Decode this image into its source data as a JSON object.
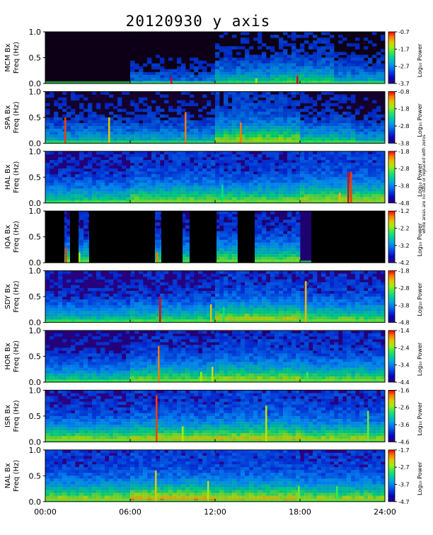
{
  "title": "20120930 y axis",
  "side_note": "white areas are no data or replaced with zeros",
  "chart_data": [
    {
      "type": "heatmap",
      "station": "MCM",
      "ylabel": [
        "MCM Bx",
        "Freq (Hz)"
      ],
      "colorbar_label": "Log₁₀ Power",
      "colorbar_ticks": [
        "-0.7",
        "-1.7",
        "-2.7",
        "-3.7"
      ],
      "clim": [
        -3.7,
        -0.7
      ],
      "background": "#0d0016",
      "events": [
        [
          8.9,
          0.12,
          1.0
        ],
        [
          14.9,
          0.1,
          0.7
        ],
        [
          17.8,
          0.15,
          1.0
        ]
      ],
      "activity": [
        [
          6.0,
          12.0,
          0.15,
          0.3
        ],
        [
          12.0,
          16.0,
          0.3,
          0.45
        ],
        [
          16.0,
          20.5,
          0.35,
          0.5
        ],
        [
          20.5,
          24.0,
          0.25,
          0.4
        ]
      ]
    },
    {
      "type": "heatmap",
      "station": "SPA",
      "ylabel": [
        "SPA Bx",
        "Freq (Hz)"
      ],
      "colorbar_label": "Log₁₀ Power",
      "colorbar_ticks": [
        "-0.8",
        "-1.8",
        "-2.8",
        "-3.8"
      ],
      "clim": [
        -3.8,
        -0.8
      ],
      "background": "#14002a",
      "events": [
        [
          1.4,
          0.5,
          0.95
        ],
        [
          4.5,
          0.5,
          0.8
        ],
        [
          9.9,
          0.6,
          0.9
        ],
        [
          13.8,
          0.4,
          0.9
        ]
      ],
      "activity": [
        [
          0.0,
          12.0,
          0.25,
          0.45
        ],
        [
          12.0,
          18.0,
          0.5,
          0.6
        ],
        [
          18.0,
          22.0,
          0.35,
          0.45
        ],
        [
          22.0,
          24.0,
          0.25,
          0.4
        ]
      ]
    },
    {
      "type": "heatmap",
      "station": "HAL",
      "ylabel": [
        "HAL Bx",
        "Freq (Hz)"
      ],
      "colorbar_label": "Log₁₀ Power",
      "colorbar_ticks": [
        "-1.8",
        "-2.8",
        "-3.8",
        "-4.8"
      ],
      "clim": [
        -4.8,
        -1.8
      ],
      "background": "#21007a",
      "events": [
        [
          20.8,
          0.2,
          0.85
        ],
        [
          21.4,
          0.6,
          1.0
        ],
        [
          21.6,
          0.6,
          0.95
        ],
        [
          12.5,
          0.35,
          0.55
        ]
      ],
      "activity": [
        [
          0.0,
          6.0,
          0.35,
          0.5
        ],
        [
          6.0,
          12.0,
          0.45,
          0.6
        ],
        [
          12.0,
          18.0,
          0.45,
          0.55
        ],
        [
          18.0,
          24.0,
          0.5,
          0.65
        ]
      ]
    },
    {
      "type": "heatmap",
      "station": "IQA",
      "ylabel": [
        "IQA Bx",
        "Freq (Hz)"
      ],
      "colorbar_label": "Log₁₀ Power",
      "colorbar_ticks": [
        "-1.2",
        "-2.2",
        "-3.2",
        "-4.2"
      ],
      "clim": [
        -4.2,
        -1.2
      ],
      "background": "#1e0070",
      "nodata": [
        [
          0.0,
          1.35
        ],
        [
          1.75,
          2.35
        ],
        [
          3.1,
          7.75
        ],
        [
          8.2,
          9.7
        ],
        [
          10.2,
          12.1
        ],
        [
          13.6,
          14.8
        ],
        [
          18.8,
          0.0
        ]
      ],
      "events": [
        [
          1.45,
          0.3,
          0.95
        ],
        [
          2.4,
          0.2,
          0.7
        ],
        [
          7.9,
          0.2,
          0.9
        ],
        [
          22.7,
          0.2,
          0.6
        ]
      ],
      "activity": [
        [
          0.0,
          12.0,
          0.4,
          0.5
        ],
        [
          12.0,
          18.0,
          0.45,
          0.55
        ],
        [
          18.8,
          24.0,
          0.5,
          0.65
        ]
      ]
    },
    {
      "type": "heatmap",
      "station": "SDY",
      "ylabel": [
        "SDY Bx",
        "Freq (Hz)"
      ],
      "colorbar_label": "Log₁₀ Power",
      "colorbar_ticks": [
        "-1.8",
        "-2.8",
        "-3.8",
        "-4.8"
      ],
      "clim": [
        -4.8,
        -1.8
      ],
      "background": "#26007e",
      "events": [
        [
          8.1,
          0.5,
          1.0
        ],
        [
          11.7,
          0.35,
          0.8
        ],
        [
          18.4,
          0.8,
          0.85
        ],
        [
          12.6,
          0.3,
          0.55
        ]
      ],
      "activity": [
        [
          0.0,
          6.0,
          0.35,
          0.45
        ],
        [
          6.0,
          12.0,
          0.4,
          0.5
        ],
        [
          12.0,
          18.0,
          0.55,
          0.6
        ],
        [
          18.0,
          24.0,
          0.45,
          0.55
        ]
      ]
    },
    {
      "type": "heatmap",
      "station": "HOR",
      "ylabel": [
        "HOR Bx",
        "Freq (Hz)"
      ],
      "colorbar_label": "Log₁₀ Power",
      "colorbar_ticks": [
        "-1.4",
        "-2.4",
        "-3.4",
        "-4.4"
      ],
      "clim": [
        -4.4,
        -1.4
      ],
      "background": "#24007a",
      "events": [
        [
          8.0,
          0.7,
          0.9
        ],
        [
          11.0,
          0.2,
          0.7
        ],
        [
          11.8,
          0.3,
          0.75
        ],
        [
          18.5,
          0.2,
          0.6
        ]
      ],
      "activity": [
        [
          0.0,
          6.0,
          0.35,
          0.45
        ],
        [
          6.0,
          12.0,
          0.45,
          0.55
        ],
        [
          12.0,
          18.0,
          0.5,
          0.6
        ],
        [
          18.0,
          24.0,
          0.45,
          0.55
        ]
      ]
    },
    {
      "type": "heatmap",
      "station": "ISR",
      "ylabel": [
        "ISR Bx",
        "Freq (Hz)"
      ],
      "colorbar_label": "Log₁₀ Power",
      "colorbar_ticks": [
        "-1.6",
        "-2.6",
        "-3.6",
        "-4.6"
      ],
      "clim": [
        -4.6,
        -1.6
      ],
      "background": "#2a0080",
      "events": [
        [
          7.85,
          0.9,
          0.95
        ],
        [
          15.6,
          0.7,
          0.75
        ],
        [
          9.7,
          0.3,
          0.7
        ],
        [
          22.8,
          0.6,
          0.65
        ]
      ],
      "activity": [
        [
          0.0,
          6.0,
          0.5,
          0.55
        ],
        [
          6.0,
          12.0,
          0.55,
          0.6
        ],
        [
          12.0,
          18.0,
          0.55,
          0.65
        ],
        [
          18.0,
          24.0,
          0.5,
          0.6
        ]
      ]
    },
    {
      "type": "heatmap",
      "station": "NAL",
      "ylabel": [
        "NAL Bx",
        "Freq (Hz)"
      ],
      "colorbar_label": "Log₁₀ Power",
      "colorbar_ticks": [
        "-1.7",
        "-2.7",
        "-3.7",
        "-4.7"
      ],
      "clim": [
        -4.7,
        -1.7
      ],
      "background": "#2c0084",
      "events": [
        [
          7.8,
          0.6,
          0.8
        ],
        [
          11.5,
          0.4,
          0.7
        ],
        [
          17.9,
          0.3,
          0.65
        ],
        [
          20.6,
          0.3,
          0.6
        ]
      ],
      "activity": [
        [
          0.0,
          6.0,
          0.5,
          0.6
        ],
        [
          6.0,
          12.0,
          0.6,
          0.65
        ],
        [
          12.0,
          18.0,
          0.55,
          0.65
        ],
        [
          18.0,
          24.0,
          0.5,
          0.6
        ]
      ]
    }
  ],
  "shared_axes": {
    "y_ticks": [
      "1.0",
      "0.5",
      "0.0"
    ],
    "ylim": [
      0.0,
      1.0
    ],
    "x_ticks": [
      "00:00",
      "06:00",
      "12:00",
      "18:00",
      "24:00"
    ],
    "xlim": [
      0,
      24
    ]
  }
}
